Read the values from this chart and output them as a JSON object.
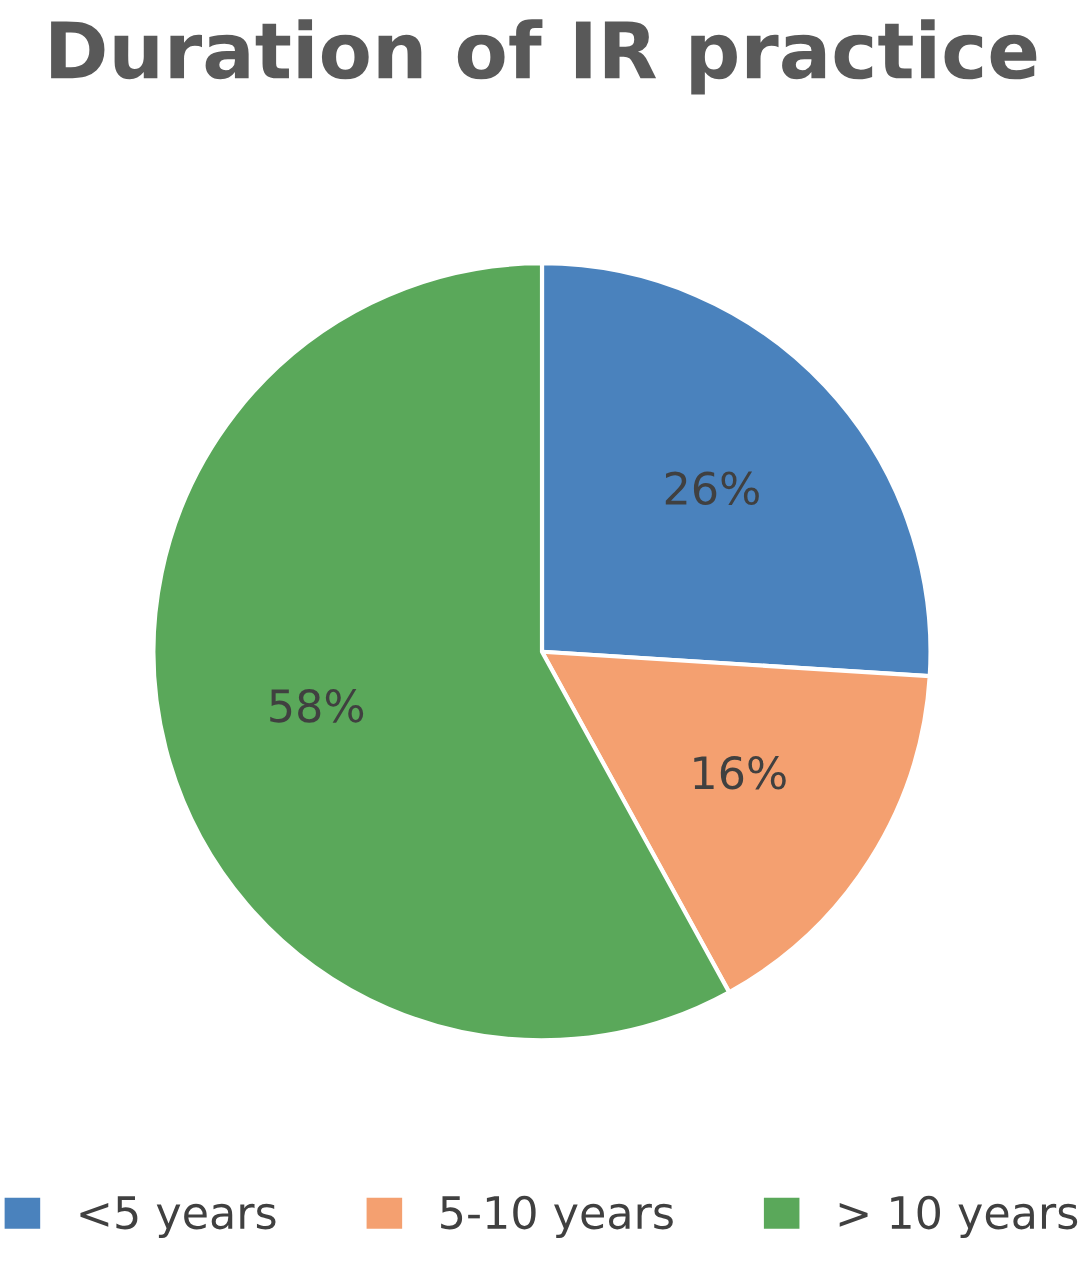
{
  "chart_data": {
    "type": "pie",
    "title": "Duration of IR practice",
    "categories": [
      "<5 years",
      "5-10 years",
      "> 10 years"
    ],
    "values": [
      26,
      16,
      58
    ],
    "colors": [
      "#4a82bd",
      "#f4a070",
      "#5aa85a"
    ],
    "value_labels": [
      "26%",
      "16%",
      "58%"
    ],
    "legend": "bottom"
  }
}
